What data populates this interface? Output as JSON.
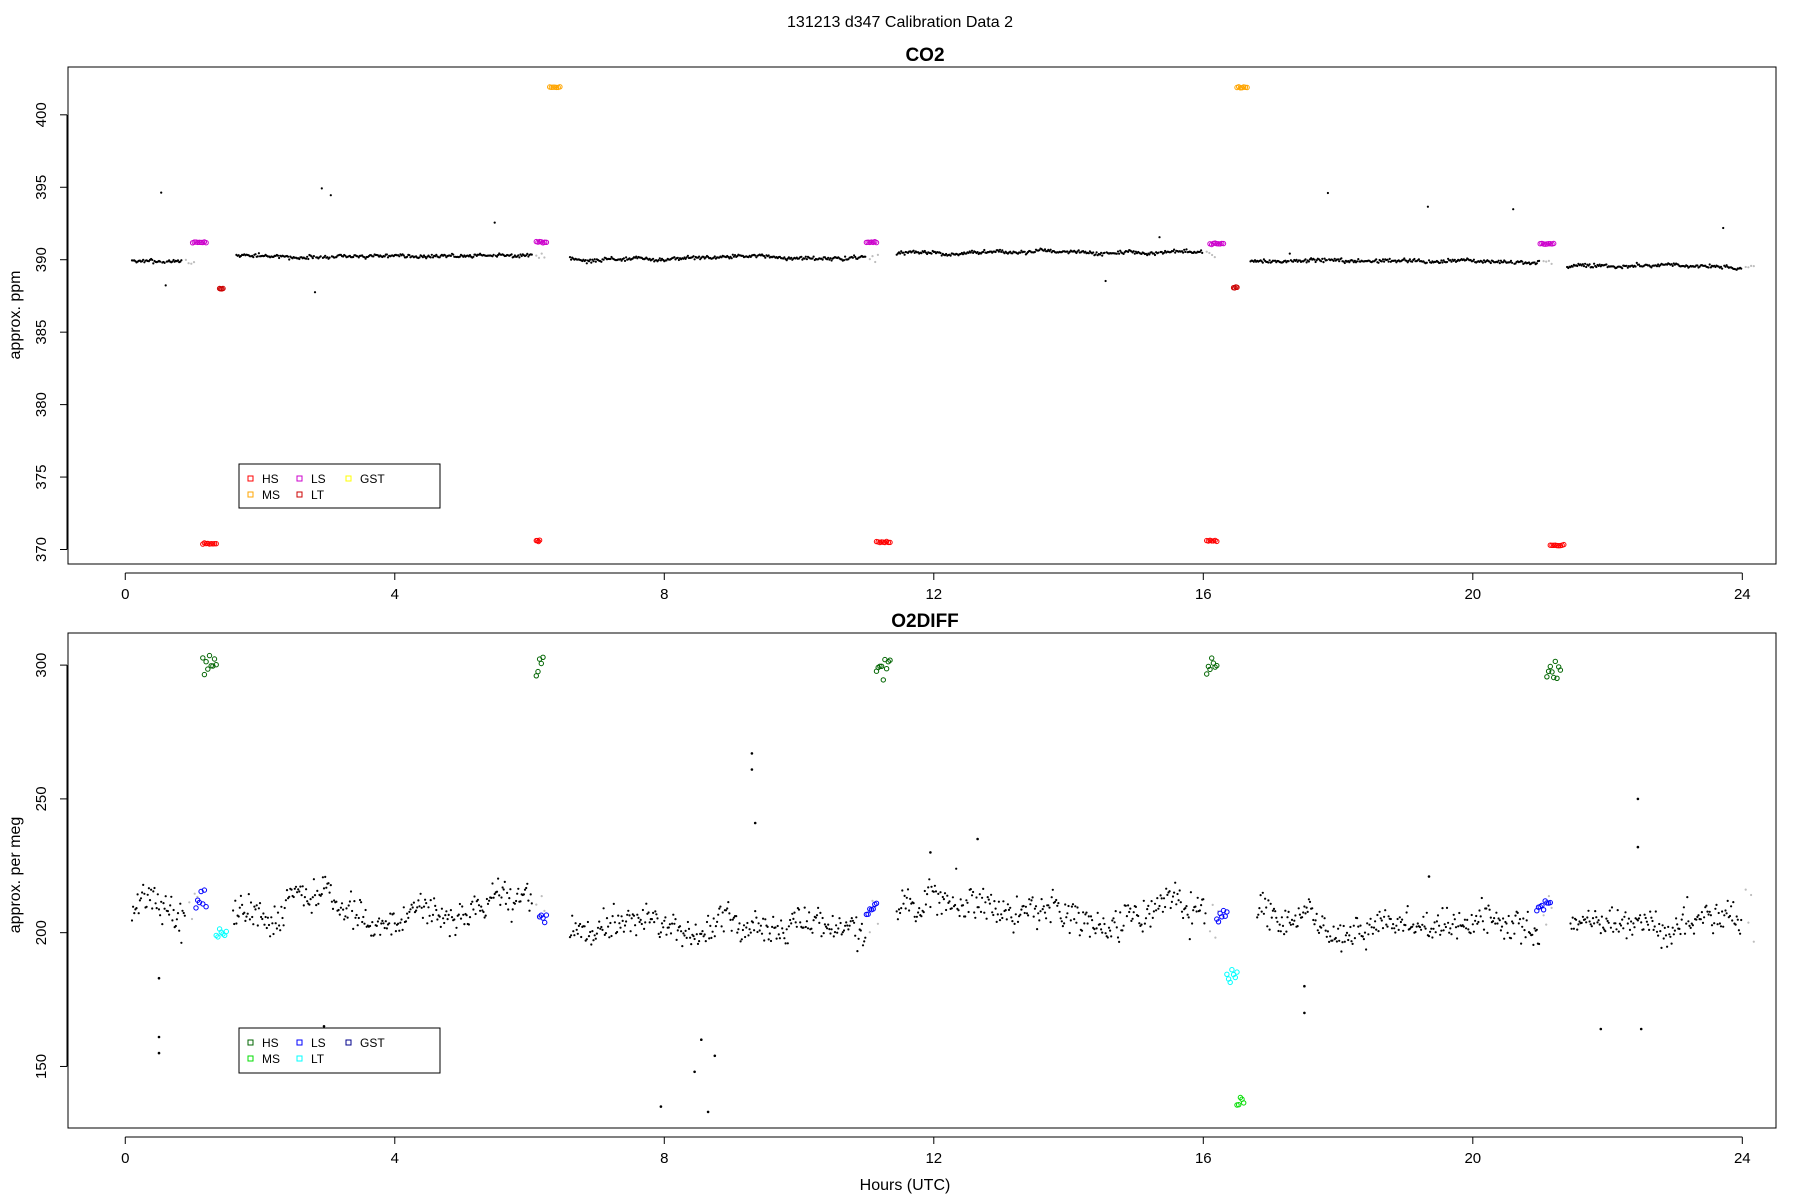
{
  "figure_title": "131213   d347   Calibration Data 2",
  "colors": {
    "data": "#000000",
    "transition": "#bdbdbd",
    "HS_co2": "#ff0000",
    "MS_co2": "#ffa500",
    "LS_co2": "#cc00cc",
    "LT_co2": "#cc0000",
    "GST_co2": "#ffff00",
    "HS_o2": "#006400",
    "MS_o2": "#00dd00",
    "LS_o2": "#0000ff",
    "LT_o2": "#00ffff",
    "GST_o2": "#00008b"
  },
  "chart_data": [
    {
      "type": "scatter",
      "title": "CO2",
      "xlabel": "",
      "ylabel": "approx. ppm",
      "xlim": [
        -0.85,
        24.5
      ],
      "ylim": [
        369,
        403.3
      ],
      "xticks": [
        "0",
        "4",
        "8",
        "12",
        "16",
        "20",
        "24"
      ],
      "yticks": [
        "370",
        "375",
        "380",
        "385",
        "390",
        "395",
        "400"
      ],
      "legend": {
        "position": "bottom-left",
        "entries": [
          "HS",
          "LS",
          "GST",
          "MS",
          "LT"
        ]
      },
      "baseline_segments": [
        {
          "start": 0.1,
          "end": 0.85,
          "level": 389.9
        },
        {
          "start": 1.65,
          "end": 6.05,
          "level": 390.3
        },
        {
          "start": 6.6,
          "end": 11.0,
          "level": 390.1
        },
        {
          "start": 11.45,
          "end": 16.0,
          "level": 390.4
        },
        {
          "start": 16.7,
          "end": 21.0,
          "level": 389.9
        },
        {
          "start": 21.4,
          "end": 24.0,
          "level": 389.5
        }
      ],
      "calibration_groups": [
        {
          "gas": "LS",
          "start": 1.0,
          "end": 1.2,
          "value": 391.2
        },
        {
          "gas": "HS",
          "start": 1.15,
          "end": 1.35,
          "value": 370.4
        },
        {
          "gas": "LT",
          "start": 1.4,
          "end": 1.45,
          "value": 388.0
        },
        {
          "gas": "LS",
          "start": 6.1,
          "end": 6.25,
          "value": 391.2
        },
        {
          "gas": "HS",
          "start": 6.1,
          "end": 6.15,
          "value": 370.6
        },
        {
          "gas": "MS",
          "start": 6.3,
          "end": 6.45,
          "value": 401.9
        },
        {
          "gas": "LS",
          "start": 11.0,
          "end": 11.15,
          "value": 391.2
        },
        {
          "gas": "HS",
          "start": 11.15,
          "end": 11.35,
          "value": 370.5
        },
        {
          "gas": "LS",
          "start": 16.1,
          "end": 16.3,
          "value": 391.1
        },
        {
          "gas": "HS",
          "start": 16.05,
          "end": 16.2,
          "value": 370.6
        },
        {
          "gas": "LT",
          "start": 16.45,
          "end": 16.5,
          "value": 388.1
        },
        {
          "gas": "MS",
          "start": 16.5,
          "end": 16.65,
          "value": 401.9
        },
        {
          "gas": "LS",
          "start": 21.0,
          "end": 21.2,
          "value": 391.1
        },
        {
          "gas": "HS",
          "start": 21.15,
          "end": 21.35,
          "value": 370.3
        }
      ]
    },
    {
      "type": "scatter",
      "title": "O2DIFF",
      "xlabel": "Hours (UTC)",
      "ylabel": "approx. per meg",
      "xlim": [
        -0.85,
        24.5
      ],
      "ylim": [
        127,
        312
      ],
      "xticks": [
        "0",
        "4",
        "8",
        "12",
        "16",
        "20",
        "24"
      ],
      "yticks": [
        "150",
        "200",
        "250",
        "300"
      ],
      "legend": {
        "position": "bottom-left",
        "entries": [
          "HS",
          "LS",
          "GST",
          "MS",
          "LT"
        ]
      },
      "baseline_segments": [
        {
          "start": 0.1,
          "end": 0.9,
          "level": 210
        },
        {
          "start": 1.6,
          "end": 6.05,
          "level": 208
        },
        {
          "start": 6.6,
          "end": 11.0,
          "level": 203
        },
        {
          "start": 11.45,
          "end": 16.05,
          "level": 208
        },
        {
          "start": 16.8,
          "end": 21.0,
          "level": 205
        },
        {
          "start": 21.45,
          "end": 24.0,
          "level": 207
        }
      ],
      "calibration_groups": [
        {
          "gas": "HS",
          "start": 1.15,
          "end": 1.35,
          "value": 300
        },
        {
          "gas": "LS",
          "start": 1.05,
          "end": 1.2,
          "value": 212
        },
        {
          "gas": "LT",
          "start": 1.35,
          "end": 1.5,
          "value": 198
        },
        {
          "gas": "HS",
          "start": 6.1,
          "end": 6.2,
          "value": 300
        },
        {
          "gas": "LS",
          "start": 6.15,
          "end": 6.25,
          "value": 204
        },
        {
          "gas": "HS",
          "start": 11.15,
          "end": 11.35,
          "value": 299
        },
        {
          "gas": "LS",
          "start": 11.0,
          "end": 11.15,
          "value": 209
        },
        {
          "gas": "HS",
          "start": 16.05,
          "end": 16.2,
          "value": 300
        },
        {
          "gas": "LS",
          "start": 16.2,
          "end": 16.35,
          "value": 206
        },
        {
          "gas": "LT",
          "start": 16.35,
          "end": 16.5,
          "value": 183
        },
        {
          "gas": "MS",
          "start": 16.5,
          "end": 16.6,
          "value": 135
        },
        {
          "gas": "HS",
          "start": 21.1,
          "end": 21.3,
          "value": 298
        },
        {
          "gas": "LS",
          "start": 20.95,
          "end": 21.15,
          "value": 210
        }
      ],
      "outliers": [
        {
          "x": 0.5,
          "y": 183
        },
        {
          "x": 0.5,
          "y": 161
        },
        {
          "x": 0.5,
          "y": 155
        },
        {
          "x": 2.95,
          "y": 165
        },
        {
          "x": 9.3,
          "y": 267
        },
        {
          "x": 9.3,
          "y": 261
        },
        {
          "x": 9.35,
          "y": 241
        },
        {
          "x": 7.95,
          "y": 135
        },
        {
          "x": 8.55,
          "y": 160
        },
        {
          "x": 8.75,
          "y": 154
        },
        {
          "x": 8.65,
          "y": 133
        },
        {
          "x": 8.45,
          "y": 148
        },
        {
          "x": 11.95,
          "y": 230
        },
        {
          "x": 12.65,
          "y": 235
        },
        {
          "x": 17.5,
          "y": 170
        },
        {
          "x": 17.5,
          "y": 180
        },
        {
          "x": 21.9,
          "y": 164
        },
        {
          "x": 22.45,
          "y": 250
        },
        {
          "x": 22.45,
          "y": 232
        },
        {
          "x": 22.5,
          "y": 164
        },
        {
          "x": 19.35,
          "y": 221
        }
      ]
    }
  ]
}
